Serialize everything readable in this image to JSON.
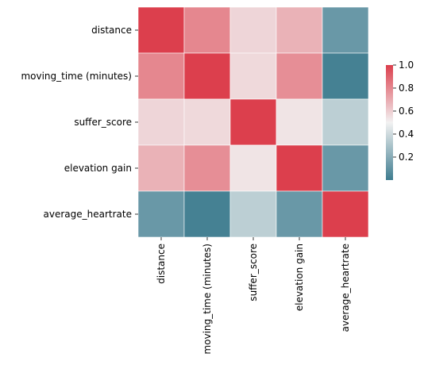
{
  "chart_data": {
    "type": "heatmap",
    "rows": [
      "distance",
      "moving_time (minutes)",
      "suffer_score",
      "elevation gain",
      "average_heartrate"
    ],
    "columns": [
      "distance",
      "moving_time (minutes)",
      "suffer_score",
      "elevation gain",
      "average_heartrate"
    ],
    "values": [
      [
        1.0,
        0.8,
        0.58,
        0.68,
        0.12
      ],
      [
        0.8,
        1.0,
        0.57,
        0.78,
        0.02
      ],
      [
        0.58,
        0.57,
        1.0,
        0.54,
        0.35
      ],
      [
        0.68,
        0.78,
        0.54,
        1.0,
        0.12
      ],
      [
        0.12,
        0.02,
        0.35,
        0.12,
        1.0
      ]
    ],
    "colorbar": {
      "ticks": [
        0.2,
        0.4,
        0.6,
        0.8,
        1.0
      ],
      "tick_labels": [
        "0.2",
        "0.4",
        "0.6",
        "0.8",
        "1.0"
      ],
      "range": [
        0.0,
        1.0
      ]
    },
    "colormap": {
      "low": "#3e7c8f",
      "mid": "#f2f2f2",
      "high": "#dc3f4d"
    },
    "title": "",
    "xlabel": "",
    "ylabel": ""
  }
}
